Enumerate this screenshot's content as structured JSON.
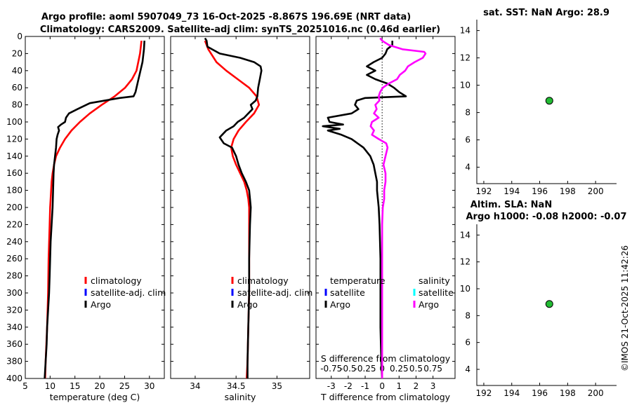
{
  "chart_data": {
    "type": "line",
    "title_line1": "Argo profile: aoml 5907049_73 16-Oct-2025 -8.867S 196.69E (NRT data)",
    "title_line2": "Climatology: CARS2009. Satellite-adj clim: synTS_20251016.nc (0.46d earlier)",
    "watermark": "©IMOS 21-Oct-2025 11:42:26",
    "colors": {
      "climatology": "#ff0000",
      "satellite": "#0000ff",
      "argo": "#000000",
      "argo_salinity_diff": "#ff00ff",
      "satellite_salinity": "#00ffff",
      "marker": "#22bb33"
    },
    "depth_axis": {
      "ylim": [
        0,
        400
      ],
      "ticks": [
        "0",
        "20",
        "40",
        "60",
        "80",
        "100",
        "120",
        "140",
        "160",
        "180",
        "200",
        "220",
        "240",
        "260",
        "280",
        "300",
        "320",
        "340",
        "360",
        "380",
        "400"
      ]
    },
    "panels": [
      {
        "id": "temperature",
        "xlabel": "temperature (deg C)",
        "xlim": [
          5,
          33
        ],
        "xticks": [
          "5",
          "10",
          "15",
          "20",
          "25",
          "30"
        ],
        "xtick_values": [
          5,
          10,
          15,
          20,
          25,
          30
        ],
        "legend": [
          "climatology",
          "satellite-adj. clim",
          "Argo"
        ],
        "series": [
          {
            "name": "climatology",
            "color": "#ff0000",
            "depth": [
              5,
              20,
              40,
              50,
              60,
              70,
              80,
              90,
              100,
              110,
              120,
              130,
              140,
              150,
              160,
              170,
              180,
              190,
              200,
              220,
              260,
              300,
              340,
              380,
              400
            ],
            "values": [
              28.4,
              28.1,
              27.4,
              26.5,
              25.1,
              23.0,
              20.4,
              18.0,
              16.0,
              14.3,
              13.0,
              12.0,
              11.2,
              10.8,
              10.5,
              10.3,
              10.2,
              10.1,
              10.0,
              9.9,
              9.7,
              9.6,
              9.4,
              9.1,
              9.0
            ]
          },
          {
            "name": "Argo",
            "color": "#000000",
            "depth": [
              5,
              15,
              30,
              50,
              60,
              65,
              70,
              72,
              78,
              85,
              90,
              95,
              100,
              103,
              106,
              110,
              115,
              120,
              130,
              140,
              145,
              150,
              160,
              180,
              200,
              220,
              240,
              260,
              280,
              300,
              320,
              340,
              360,
              380,
              400
            ],
            "values": [
              29.0,
              28.9,
              28.6,
              27.8,
              27.4,
              27.2,
              26.8,
              24.0,
              18.0,
              15.5,
              13.8,
              13.2,
              13.0,
              12.2,
              11.6,
              11.8,
              11.5,
              11.3,
              11.2,
              11.0,
              10.9,
              10.8,
              10.7,
              10.6,
              10.5,
              10.3,
              10.1,
              10.0,
              9.9,
              9.8,
              9.6,
              9.4,
              9.3,
              9.1,
              8.9
            ]
          }
        ]
      },
      {
        "id": "salinity",
        "xlabel": "salinity",
        "xlim": [
          33.7,
          35.4
        ],
        "xticks": [
          "34",
          "34.5",
          "35"
        ],
        "xtick_values": [
          34,
          34.5,
          35
        ],
        "legend": [
          "climatology",
          "satellite-adj. clim",
          "Argo"
        ],
        "series": [
          {
            "name": "climatology",
            "color": "#ff0000",
            "depth": [
              5,
              15,
              30,
              40,
              50,
              60,
              70,
              80,
              90,
              100,
              110,
              120,
              130,
              140,
              150,
              160,
              170,
              180,
              190,
              200,
              220,
              260,
              300,
              340,
              380,
              400
            ],
            "values": [
              34.12,
              34.16,
              34.26,
              34.38,
              34.52,
              34.66,
              34.75,
              34.78,
              34.72,
              34.62,
              34.53,
              34.47,
              34.44,
              34.46,
              34.5,
              34.55,
              34.6,
              34.63,
              34.65,
              34.66,
              34.66,
              34.66,
              34.66,
              34.65,
              34.64,
              34.63
            ]
          },
          {
            "name": "Argo",
            "color": "#000000",
            "depth": [
              2,
              5,
              12,
              20,
              25,
              30,
              35,
              40,
              50,
              60,
              70,
              75,
              80,
              85,
              90,
              95,
              100,
              105,
              110,
              115,
              118,
              125,
              130,
              140,
              150,
              160,
              170,
              180,
              190,
              200,
              220,
              260,
              300,
              340,
              380,
              400
            ],
            "values": [
              34.12,
              34.14,
              34.15,
              34.3,
              34.55,
              34.72,
              34.8,
              34.81,
              34.79,
              34.77,
              34.76,
              34.74,
              34.68,
              34.7,
              34.65,
              34.6,
              34.52,
              34.47,
              34.38,
              34.33,
              34.3,
              34.35,
              34.45,
              34.5,
              34.53,
              34.57,
              34.62,
              34.66,
              34.67,
              34.68,
              34.67,
              34.66,
              34.66,
              34.65,
              34.64,
              34.64
            ]
          }
        ]
      },
      {
        "id": "difference",
        "xlabel": "T difference from climatology",
        "xlabel_top": "S difference from climatology",
        "xlim": [
          -3.9,
          4.3
        ],
        "xticks": [
          "-3",
          "-2",
          "-1",
          "0",
          "1",
          "2",
          "3"
        ],
        "xtick_values": [
          -3,
          -2,
          -1,
          0,
          1,
          2,
          3
        ],
        "sticks_top": [
          "-0.75",
          "-0.5",
          "-0.25",
          "0",
          "0.25",
          "0.5",
          "0.75"
        ],
        "legend_temperature_header": "temperature",
        "legend_salinity_header": "salinity",
        "legend_left": [
          "satellite",
          "Argo"
        ],
        "legend_right": [
          "satellite",
          "Argo"
        ],
        "series": [
          {
            "name": "T diff Argo",
            "color": "#000000",
            "depth": [
              5,
              10,
              15,
              20,
              25,
              30,
              35,
              40,
              45,
              50,
              55,
              60,
              65,
              70,
              72,
              75,
              80,
              85,
              90,
              95,
              100,
              103,
              105,
              108,
              110,
              115,
              120,
              130,
              140,
              150,
              160,
              170,
              180,
              190,
              200,
              220,
              260,
              300,
              340,
              380,
              400
            ],
            "values": [
              0.6,
              0.6,
              0.3,
              0.2,
              0.0,
              -0.5,
              -0.9,
              -0.4,
              -0.9,
              -0.4,
              0.3,
              0.7,
              1.0,
              1.4,
              -1.0,
              -1.5,
              -1.6,
              -1.4,
              -1.8,
              -3.2,
              -3.1,
              -2.3,
              -3.5,
              -2.5,
              -3.2,
              -2.4,
              -1.8,
              -1.1,
              -0.7,
              -0.5,
              -0.4,
              -0.3,
              -0.3,
              -0.25,
              -0.2,
              -0.15,
              -0.1,
              -0.1,
              -0.1,
              -0.05,
              0.0
            ]
          },
          {
            "name": "S diff Argo",
            "color": "#ff00ff",
            "depth": [
              2,
              5,
              10,
              15,
              18,
              20,
              25,
              30,
              35,
              40,
              45,
              50,
              55,
              60,
              65,
              70,
              75,
              80,
              85,
              90,
              95,
              100,
              105,
              110,
              115,
              120,
              125,
              130,
              140,
              150,
              160,
              170,
              180,
              190,
              200,
              220,
              260,
              300,
              340,
              380,
              400
            ],
            "values": [
              -0.03,
              0.0,
              0.1,
              0.3,
              0.62,
              0.64,
              0.6,
              0.48,
              0.38,
              0.34,
              0.26,
              0.22,
              0.1,
              0.01,
              -0.03,
              -0.05,
              -0.04,
              -0.1,
              -0.08,
              -0.12,
              -0.05,
              -0.15,
              -0.17,
              -0.12,
              -0.15,
              -0.05,
              0.06,
              0.08,
              0.05,
              0.02,
              0.05,
              0.05,
              0.03,
              0.03,
              0.01,
              0.0,
              0.0,
              0.0,
              0.0,
              0.0,
              0.0
            ]
          }
        ]
      },
      {
        "id": "sst-inset",
        "title": "sat. SST: NaN Argo: 28.9",
        "xlim": [
          191.5,
          201.5
        ],
        "ylim": [
          2.8,
          14.8
        ],
        "xticks": [
          "192",
          "194",
          "196",
          "198",
          "200"
        ],
        "xtick_values": [
          192,
          194,
          196,
          198,
          200
        ],
        "yticks": [
          "4",
          "6",
          "8",
          "10",
          "12",
          "14"
        ],
        "ytick_values": [
          4,
          6,
          8,
          10,
          12,
          14
        ],
        "marker": {
          "lon": 196.69,
          "lat": 8.867
        }
      },
      {
        "id": "sla-inset",
        "title": "Altim. SLA: NaN",
        "subtitle": "Argo h1000: -0.08 h2000: -0.07",
        "xlim": [
          191.5,
          201.5
        ],
        "ylim": [
          2.8,
          14.8
        ],
        "xticks": [
          "192",
          "194",
          "196",
          "198",
          "200"
        ],
        "xtick_values": [
          192,
          194,
          196,
          198,
          200
        ],
        "yticks": [
          "4",
          "6",
          "8",
          "10",
          "12",
          "14"
        ],
        "ytick_values": [
          4,
          6,
          8,
          10,
          12,
          14
        ],
        "marker": {
          "lon": 196.69,
          "lat": 8.867
        }
      }
    ]
  }
}
